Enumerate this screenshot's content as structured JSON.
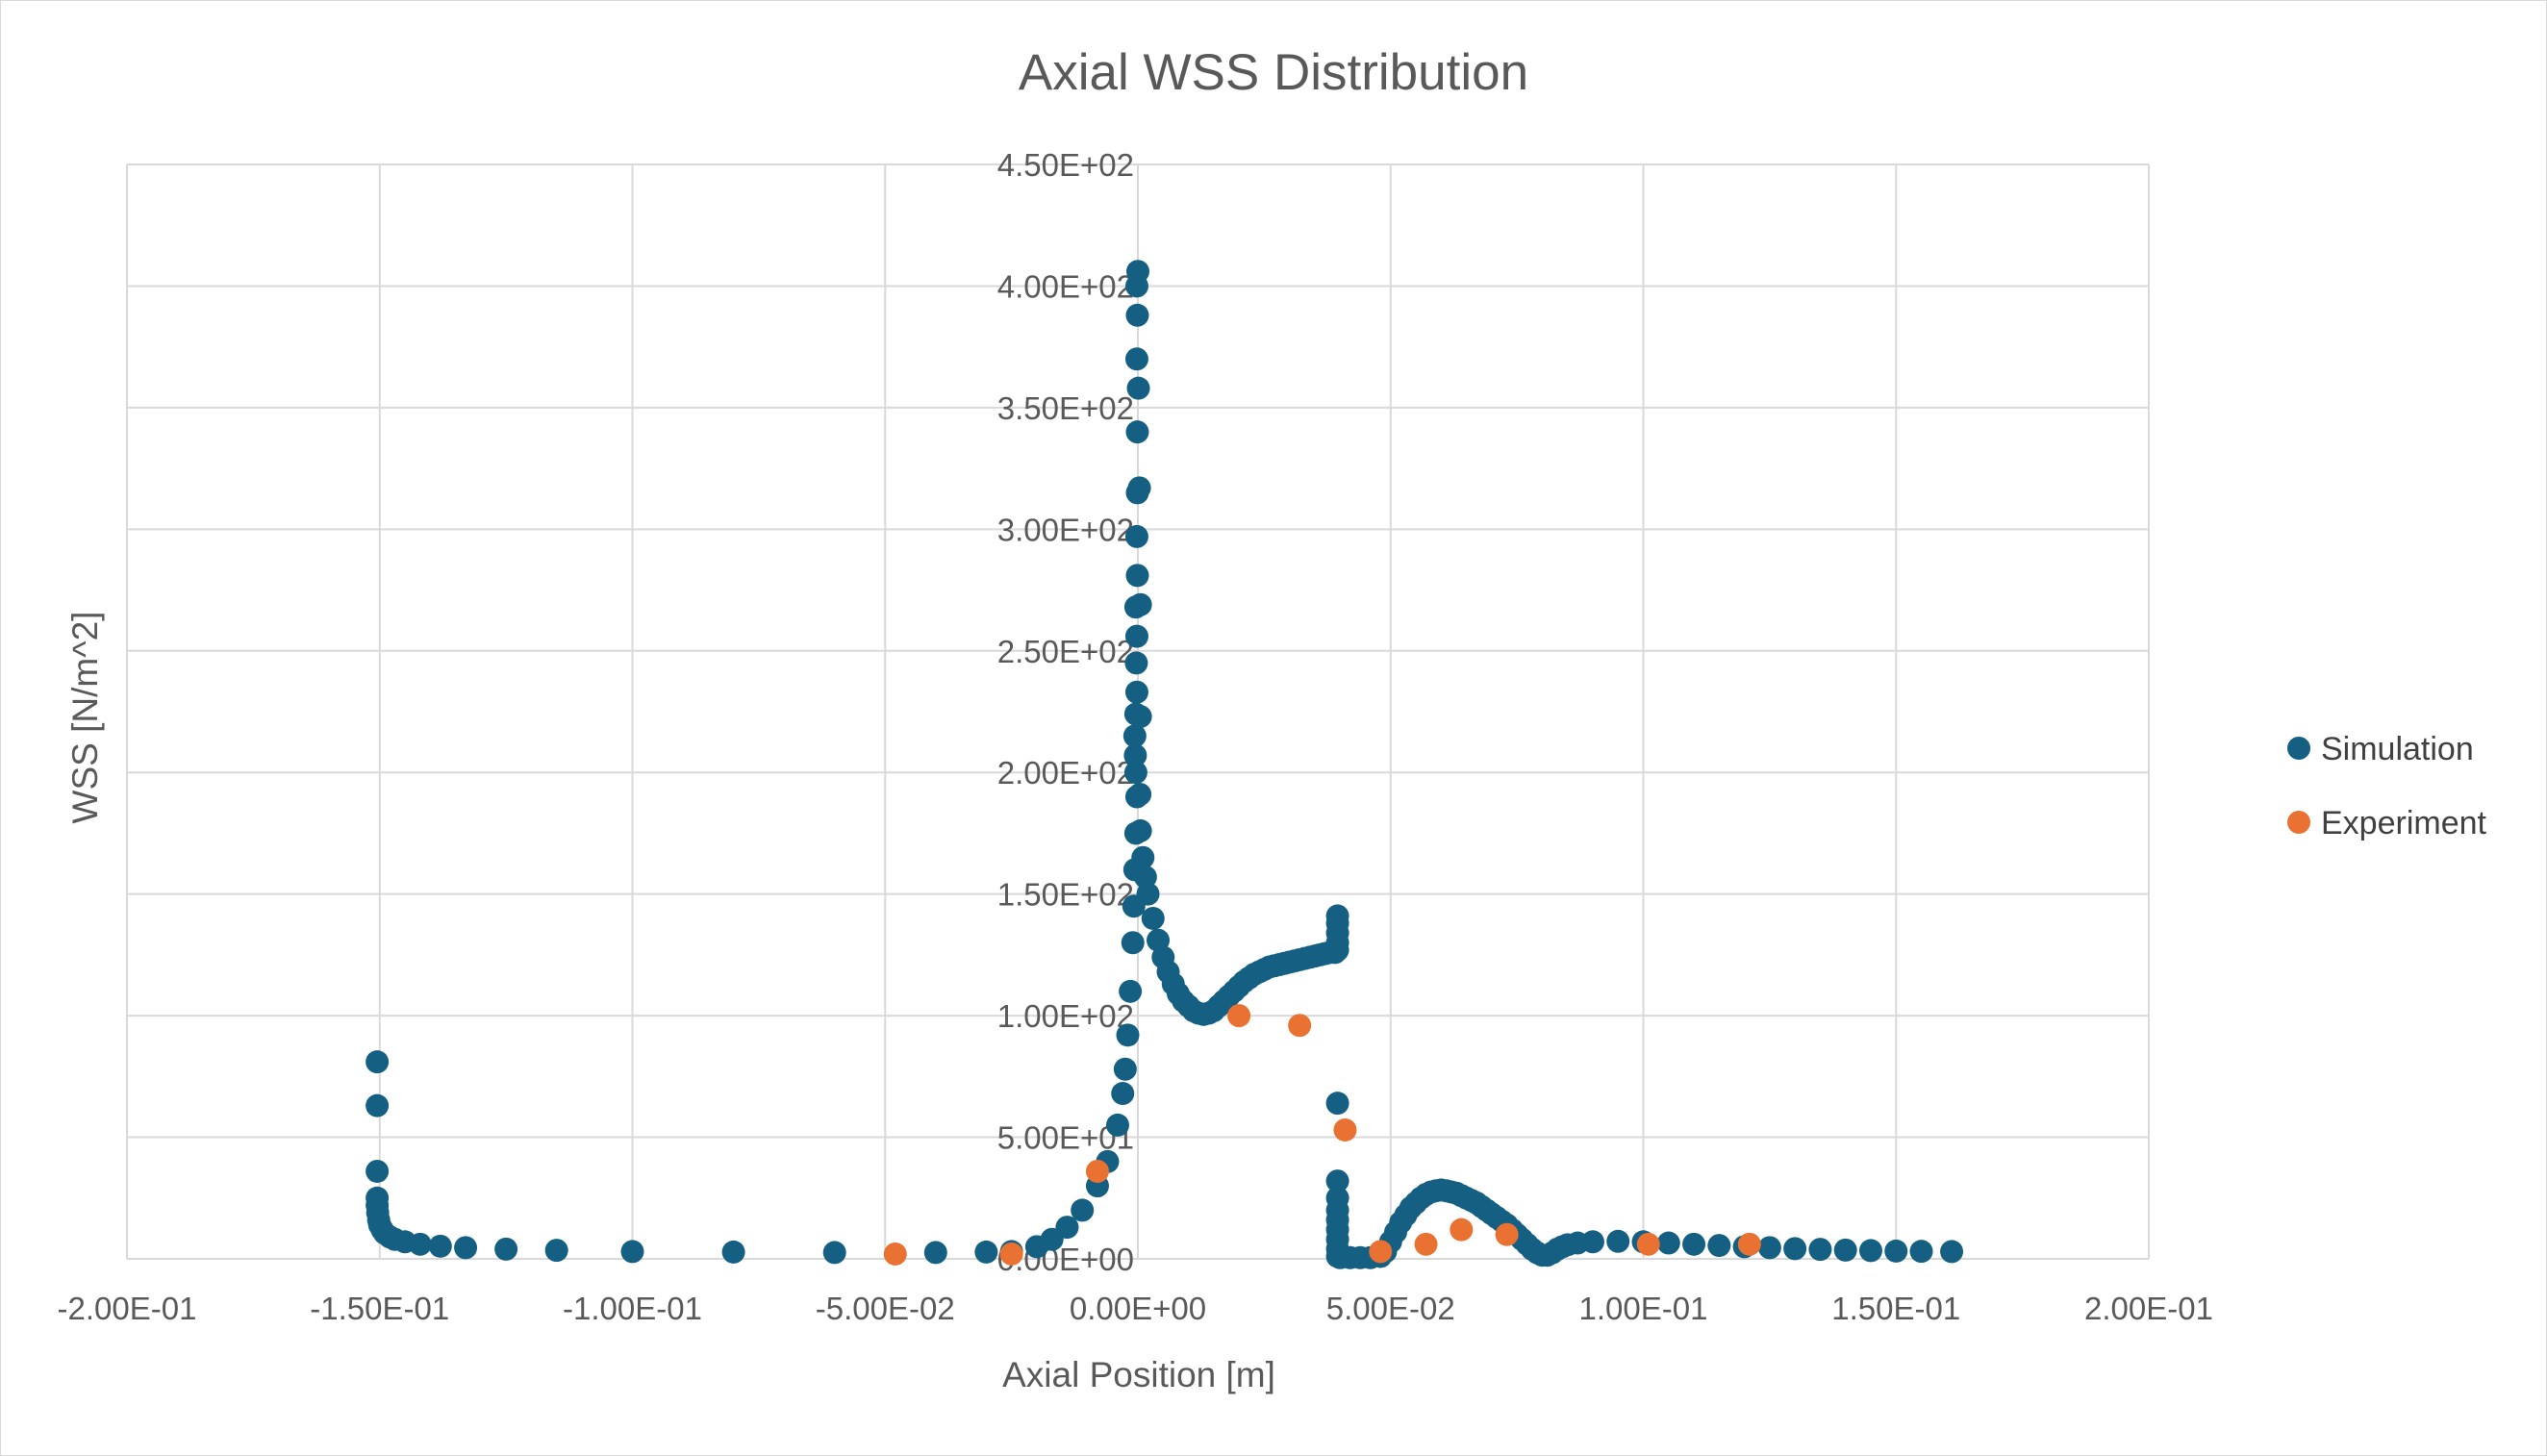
{
  "chart_data": {
    "type": "scatter",
    "title": "Axial WSS Distribution",
    "xlabel": "Axial Position [m]",
    "ylabel": "WSS [N/m^2]",
    "xlim": [
      -0.2,
      0.2
    ],
    "ylim": [
      0,
      450
    ],
    "x_ticks": [
      -0.2,
      -0.15,
      -0.1,
      -0.05,
      0,
      0.05,
      0.1,
      0.15,
      0.2
    ],
    "x_tick_labels": [
      "-2.00E-01",
      "-1.50E-01",
      "-1.00E-01",
      "-5.00E-02",
      "0.00E+00",
      "5.00E-02",
      "1.00E-01",
      "1.50E-01",
      "2.00E-01"
    ],
    "y_ticks": [
      0,
      50,
      100,
      150,
      200,
      250,
      300,
      350,
      400,
      450
    ],
    "y_tick_labels": [
      "0.00E+00",
      "5.00E+01",
      "1.00E+02",
      "1.50E+02",
      "2.00E+02",
      "2.50E+02",
      "3.00E+02",
      "3.50E+02",
      "4.00E+02",
      "4.50E+02"
    ],
    "grid": true,
    "legend_position": "right",
    "series": [
      {
        "name": "Simulation",
        "color": "#156082",
        "points": [
          [
            -0.1505,
            81
          ],
          [
            -0.1505,
            63
          ],
          [
            -0.1505,
            36
          ],
          [
            -0.1505,
            25
          ],
          [
            -0.1505,
            22
          ],
          [
            -0.1504,
            19
          ],
          [
            -0.1502,
            16
          ],
          [
            -0.15,
            14
          ],
          [
            -0.1495,
            12
          ],
          [
            -0.149,
            10.5
          ],
          [
            -0.148,
            9
          ],
          [
            -0.147,
            8
          ],
          [
            -0.145,
            7
          ],
          [
            -0.142,
            6
          ],
          [
            -0.138,
            5.2
          ],
          [
            -0.133,
            4.6
          ],
          [
            -0.125,
            4
          ],
          [
            -0.115,
            3.5
          ],
          [
            -0.1,
            3
          ],
          [
            -0.08,
            2.8
          ],
          [
            -0.06,
            2.6
          ],
          [
            -0.04,
            2.6
          ],
          [
            -0.03,
            2.8
          ],
          [
            -0.025,
            3
          ],
          [
            -0.02,
            5
          ],
          [
            -0.017,
            8
          ],
          [
            -0.014,
            13
          ],
          [
            -0.011,
            20
          ],
          [
            -0.008,
            30
          ],
          [
            -0.006,
            40
          ],
          [
            -0.004,
            55
          ],
          [
            -0.003,
            68
          ],
          [
            -0.0025,
            78
          ],
          [
            -0.002,
            92
          ],
          [
            -0.0015,
            110
          ],
          [
            -0.001,
            130
          ],
          [
            -0.0008,
            145
          ],
          [
            -0.0006,
            160
          ],
          [
            -0.0004,
            175
          ],
          [
            -0.0002,
            190
          ],
          [
            -0.0004,
            200
          ],
          [
            -0.0005,
            207
          ],
          [
            -0.0006,
            215
          ],
          [
            -0.0004,
            224
          ],
          [
            -0.0002,
            233
          ],
          [
            -0.0003,
            245
          ],
          [
            -0.0002,
            256
          ],
          [
            -0.0004,
            268
          ],
          [
            -0.0001,
            281
          ],
          [
            -0.0002,
            297
          ],
          [
            -0.0001,
            315
          ],
          [
            0.0003,
            317
          ],
          [
            -0.0001,
            340
          ],
          [
            0.0001,
            358
          ],
          [
            -0.0002,
            370
          ],
          [
            -0.0001,
            388
          ],
          [
            -0.0002,
            400
          ],
          [
            0.0,
            406
          ],
          [
            0.0005,
            269
          ],
          [
            0.0005,
            223
          ],
          [
            0.0004,
            191
          ],
          [
            0.0005,
            176
          ],
          [
            0.001,
            165
          ],
          [
            0.0015,
            157
          ],
          [
            0.002,
            150
          ],
          [
            0.003,
            140
          ],
          [
            0.004,
            131
          ],
          [
            0.005,
            124
          ],
          [
            0.006,
            118
          ],
          [
            0.007,
            113
          ],
          [
            0.008,
            109
          ],
          [
            0.009,
            106
          ],
          [
            0.01,
            104
          ],
          [
            0.011,
            102
          ],
          [
            0.012,
            101
          ],
          [
            0.013,
            100.5
          ],
          [
            0.014,
            101
          ],
          [
            0.015,
            102
          ],
          [
            0.016,
            104
          ],
          [
            0.017,
            106
          ],
          [
            0.018,
            108
          ],
          [
            0.019,
            110
          ],
          [
            0.02,
            112
          ],
          [
            0.021,
            114
          ],
          [
            0.022,
            115.5
          ],
          [
            0.023,
            117
          ],
          [
            0.024,
            118
          ],
          [
            0.025,
            119
          ],
          [
            0.026,
            120
          ],
          [
            0.027,
            120.5
          ],
          [
            0.028,
            121
          ],
          [
            0.029,
            121.5
          ],
          [
            0.03,
            122
          ],
          [
            0.031,
            122.5
          ],
          [
            0.032,
            123
          ],
          [
            0.033,
            123.5
          ],
          [
            0.034,
            124
          ],
          [
            0.035,
            124.5
          ],
          [
            0.036,
            125
          ],
          [
            0.037,
            125.5
          ],
          [
            0.038,
            126
          ],
          [
            0.039,
            126
          ],
          [
            0.0395,
            127
          ],
          [
            0.0395,
            130
          ],
          [
            0.0395,
            134
          ],
          [
            0.0395,
            138
          ],
          [
            0.0395,
            141
          ],
          [
            0.0395,
            64
          ],
          [
            0.0395,
            32
          ],
          [
            0.0395,
            25
          ],
          [
            0.0395,
            20
          ],
          [
            0.0395,
            16
          ],
          [
            0.0395,
            12
          ],
          [
            0.0395,
            8
          ],
          [
            0.0395,
            4
          ],
          [
            0.0395,
            1
          ],
          [
            0.04,
            0.5
          ],
          [
            0.042,
            0.5
          ],
          [
            0.044,
            0.5
          ],
          [
            0.046,
            0.5
          ],
          [
            0.048,
            1
          ],
          [
            0.049,
            3
          ],
          [
            0.05,
            7
          ],
          [
            0.051,
            11
          ],
          [
            0.052,
            15
          ],
          [
            0.053,
            18
          ],
          [
            0.054,
            21
          ],
          [
            0.055,
            23
          ],
          [
            0.056,
            25
          ],
          [
            0.057,
            26.5
          ],
          [
            0.058,
            27.5
          ],
          [
            0.059,
            28
          ],
          [
            0.06,
            28.3
          ],
          [
            0.061,
            28
          ],
          [
            0.062,
            27.5
          ],
          [
            0.063,
            27
          ],
          [
            0.064,
            26
          ],
          [
            0.065,
            25
          ],
          [
            0.066,
            24
          ],
          [
            0.067,
            23
          ],
          [
            0.068,
            21.5
          ],
          [
            0.069,
            20
          ],
          [
            0.07,
            18.5
          ],
          [
            0.071,
            17
          ],
          [
            0.072,
            15.5
          ],
          [
            0.073,
            14
          ],
          [
            0.074,
            12
          ],
          [
            0.075,
            10
          ],
          [
            0.076,
            8
          ],
          [
            0.077,
            6
          ],
          [
            0.078,
            4
          ],
          [
            0.079,
            2.5
          ],
          [
            0.08,
            1.5
          ],
          [
            0.081,
            1.5
          ],
          [
            0.082,
            2.5
          ],
          [
            0.083,
            4
          ],
          [
            0.084,
            5
          ],
          [
            0.085,
            5.8
          ],
          [
            0.087,
            6.5
          ],
          [
            0.09,
            7
          ],
          [
            0.095,
            7.2
          ],
          [
            0.1,
            7
          ],
          [
            0.105,
            6.5
          ],
          [
            0.11,
            6
          ],
          [
            0.115,
            5.5
          ],
          [
            0.12,
            5
          ],
          [
            0.125,
            4.6
          ],
          [
            0.13,
            4.2
          ],
          [
            0.135,
            3.9
          ],
          [
            0.14,
            3.6
          ],
          [
            0.145,
            3.4
          ],
          [
            0.15,
            3.2
          ],
          [
            0.155,
            3.1
          ],
          [
            0.161,
            3
          ]
        ]
      },
      {
        "name": "Experiment",
        "color": "#E97132",
        "points": [
          [
            -0.048,
            2
          ],
          [
            -0.025,
            2
          ],
          [
            -0.008,
            36
          ],
          [
            0.02,
            100
          ],
          [
            0.032,
            96
          ],
          [
            0.041,
            53
          ],
          [
            0.048,
            3
          ],
          [
            0.057,
            6
          ],
          [
            0.064,
            12
          ],
          [
            0.073,
            10
          ],
          [
            0.101,
            6
          ],
          [
            0.121,
            6
          ]
        ]
      }
    ]
  }
}
